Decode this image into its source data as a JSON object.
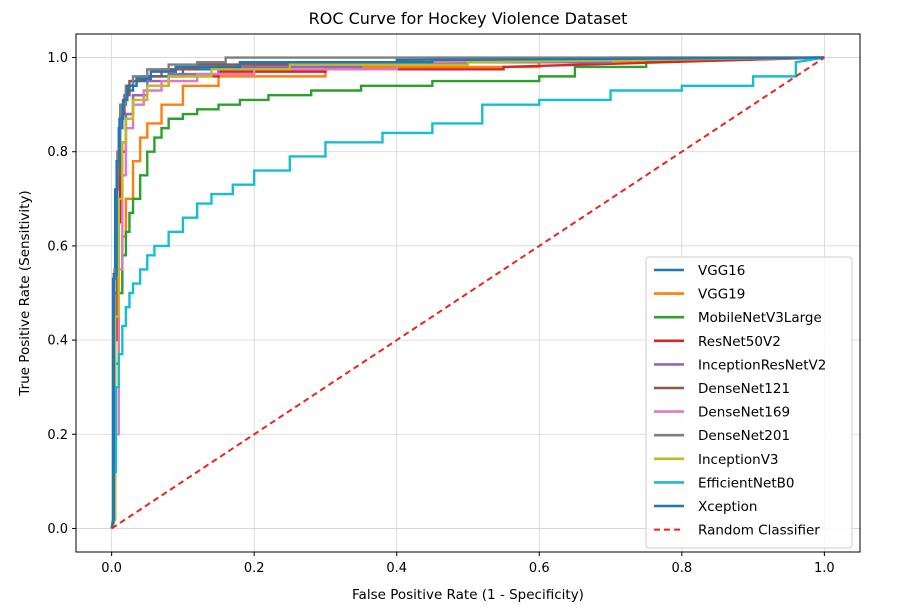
{
  "chart_data": {
    "type": "line",
    "title": "ROC Curve for Hockey Violence Dataset",
    "xlabel": "False Positive Rate (1 - Specificity)",
    "ylabel": "True Positive Rate (Sensitivity)",
    "xlim": [
      -0.05,
      1.05
    ],
    "ylim": [
      -0.05,
      1.05
    ],
    "xticks": [
      "0.0",
      "0.2",
      "0.4",
      "0.6",
      "0.8",
      "1.0"
    ],
    "yticks": [
      "0.0",
      "0.2",
      "0.4",
      "0.6",
      "0.8",
      "1.0"
    ],
    "grid": true,
    "legend_position": "lower-right",
    "series": [
      {
        "name": "VGG16",
        "color": "#1f77b4",
        "dash": false,
        "x": [
          0,
          0.002,
          0.002,
          0.005,
          0.005,
          0.01,
          0.01,
          0.015,
          0.015,
          0.02,
          0.02,
          0.03,
          0.03,
          0.05,
          0.05,
          0.1,
          0.1,
          0.2,
          0.2,
          0.4,
          0.4,
          1.0
        ],
        "y": [
          0,
          0.02,
          0.53,
          0.53,
          0.72,
          0.72,
          0.85,
          0.85,
          0.9,
          0.9,
          0.93,
          0.93,
          0.95,
          0.95,
          0.96,
          0.96,
          0.975,
          0.975,
          0.985,
          0.985,
          0.995,
          1.0
        ]
      },
      {
        "name": "VGG19",
        "color": "#ff7f0e",
        "dash": false,
        "x": [
          0,
          0.005,
          0.005,
          0.01,
          0.01,
          0.015,
          0.015,
          0.02,
          0.02,
          0.03,
          0.03,
          0.04,
          0.04,
          0.05,
          0.05,
          0.07,
          0.07,
          0.1,
          0.1,
          0.15,
          0.15,
          0.3,
          0.3,
          0.6,
          0.6,
          1.0
        ],
        "y": [
          0,
          0.02,
          0.3,
          0.3,
          0.5,
          0.5,
          0.62,
          0.62,
          0.7,
          0.7,
          0.78,
          0.78,
          0.83,
          0.83,
          0.86,
          0.86,
          0.9,
          0.9,
          0.94,
          0.94,
          0.96,
          0.96,
          0.98,
          0.98,
          0.99,
          1.0
        ]
      },
      {
        "name": "MobileNetV3Large",
        "color": "#2ca02c",
        "dash": false,
        "x": [
          0,
          0.005,
          0.005,
          0.01,
          0.01,
          0.015,
          0.015,
          0.02,
          0.02,
          0.025,
          0.025,
          0.03,
          0.03,
          0.04,
          0.04,
          0.05,
          0.05,
          0.06,
          0.06,
          0.07,
          0.07,
          0.08,
          0.08,
          0.1,
          0.1,
          0.12,
          0.12,
          0.15,
          0.15,
          0.18,
          0.18,
          0.22,
          0.22,
          0.28,
          0.28,
          0.35,
          0.35,
          0.45,
          0.45,
          0.6,
          0.6,
          0.65,
          0.65,
          0.75,
          0.75,
          1.0
        ],
        "y": [
          0,
          0.02,
          0.35,
          0.35,
          0.5,
          0.5,
          0.58,
          0.58,
          0.63,
          0.63,
          0.67,
          0.67,
          0.7,
          0.7,
          0.75,
          0.75,
          0.8,
          0.8,
          0.83,
          0.83,
          0.85,
          0.85,
          0.87,
          0.87,
          0.88,
          0.88,
          0.89,
          0.89,
          0.9,
          0.9,
          0.91,
          0.91,
          0.92,
          0.92,
          0.93,
          0.93,
          0.94,
          0.94,
          0.95,
          0.95,
          0.96,
          0.96,
          0.98,
          0.98,
          0.99,
          1.0
        ]
      },
      {
        "name": "ResNet50V2",
        "color": "#d62728",
        "dash": false,
        "x": [
          0,
          0.004,
          0.004,
          0.008,
          0.008,
          0.012,
          0.012,
          0.02,
          0.02,
          0.03,
          0.03,
          0.05,
          0.05,
          0.08,
          0.08,
          0.15,
          0.15,
          0.3,
          0.3,
          0.55,
          0.55,
          1.0
        ],
        "y": [
          0,
          0.02,
          0.4,
          0.4,
          0.65,
          0.65,
          0.8,
          0.8,
          0.88,
          0.88,
          0.92,
          0.92,
          0.94,
          0.94,
          0.96,
          0.96,
          0.97,
          0.97,
          0.975,
          0.975,
          0.98,
          1.0
        ]
      },
      {
        "name": "InceptionResNetV2",
        "color": "#9467bd",
        "dash": false,
        "x": [
          0,
          0.005,
          0.005,
          0.01,
          0.01,
          0.015,
          0.015,
          0.02,
          0.02,
          0.03,
          0.03,
          0.05,
          0.05,
          0.08,
          0.08,
          0.15,
          0.15,
          0.35,
          0.35,
          0.7,
          0.7,
          1.0
        ],
        "y": [
          0,
          0.02,
          0.45,
          0.45,
          0.7,
          0.7,
          0.82,
          0.82,
          0.88,
          0.88,
          0.92,
          0.92,
          0.95,
          0.95,
          0.965,
          0.965,
          0.98,
          0.98,
          0.99,
          0.99,
          1.0,
          1.0
        ]
      },
      {
        "name": "DenseNet121",
        "color": "#8c564b",
        "dash": false,
        "x": [
          0,
          0.004,
          0.004,
          0.008,
          0.008,
          0.012,
          0.012,
          0.018,
          0.018,
          0.025,
          0.025,
          0.04,
          0.04,
          0.07,
          0.07,
          0.12,
          0.12,
          0.25,
          0.25,
          0.5,
          0.5,
          1.0
        ],
        "y": [
          0,
          0.02,
          0.5,
          0.5,
          0.75,
          0.75,
          0.88,
          0.88,
          0.92,
          0.92,
          0.95,
          0.95,
          0.96,
          0.96,
          0.975,
          0.975,
          0.985,
          0.985,
          0.99,
          0.99,
          0.995,
          1.0
        ]
      },
      {
        "name": "DenseNet169",
        "color": "#e377c2",
        "dash": false,
        "x": [
          0,
          0.005,
          0.005,
          0.01,
          0.01,
          0.015,
          0.015,
          0.02,
          0.02,
          0.03,
          0.03,
          0.045,
          0.045,
          0.07,
          0.07,
          0.12,
          0.12,
          0.2,
          0.2,
          0.4,
          0.4,
          1.0
        ],
        "y": [
          0,
          0.02,
          0.2,
          0.2,
          0.55,
          0.55,
          0.75,
          0.75,
          0.85,
          0.85,
          0.9,
          0.9,
          0.93,
          0.93,
          0.95,
          0.95,
          0.965,
          0.965,
          0.975,
          0.975,
          0.99,
          1.0
        ]
      },
      {
        "name": "DenseNet201",
        "color": "#7f7f7f",
        "dash": false,
        "x": [
          0,
          0.004,
          0.004,
          0.008,
          0.008,
          0.012,
          0.012,
          0.02,
          0.02,
          0.03,
          0.03,
          0.05,
          0.05,
          0.08,
          0.08,
          0.12,
          0.12,
          0.16,
          0.16,
          0.3,
          0.3,
          1.0
        ],
        "y": [
          0,
          0.02,
          0.55,
          0.55,
          0.8,
          0.8,
          0.9,
          0.9,
          0.94,
          0.94,
          0.96,
          0.96,
          0.975,
          0.975,
          0.985,
          0.985,
          0.99,
          0.99,
          1.0,
          1.0,
          1.0,
          1.0
        ]
      },
      {
        "name": "InceptionV3",
        "color": "#bcbd22",
        "dash": false,
        "x": [
          0,
          0.005,
          0.005,
          0.01,
          0.01,
          0.015,
          0.015,
          0.02,
          0.02,
          0.03,
          0.03,
          0.05,
          0.05,
          0.08,
          0.08,
          0.14,
          0.14,
          0.25,
          0.25,
          0.5,
          0.5,
          1.0
        ],
        "y": [
          0,
          0.02,
          0.45,
          0.45,
          0.7,
          0.7,
          0.82,
          0.82,
          0.87,
          0.87,
          0.91,
          0.91,
          0.94,
          0.94,
          0.96,
          0.96,
          0.975,
          0.975,
          0.985,
          0.985,
          0.99,
          1.0
        ]
      },
      {
        "name": "EfficientNetB0",
        "color": "#17becf",
        "dash": false,
        "x": [
          0,
          0.003,
          0.003,
          0.006,
          0.006,
          0.01,
          0.01,
          0.015,
          0.015,
          0.02,
          0.02,
          0.025,
          0.025,
          0.03,
          0.03,
          0.04,
          0.04,
          0.05,
          0.05,
          0.06,
          0.06,
          0.08,
          0.08,
          0.1,
          0.1,
          0.12,
          0.12,
          0.14,
          0.14,
          0.17,
          0.17,
          0.2,
          0.2,
          0.25,
          0.25,
          0.3,
          0.3,
          0.38,
          0.38,
          0.45,
          0.45,
          0.52,
          0.52,
          0.6,
          0.6,
          0.7,
          0.7,
          0.8,
          0.8,
          0.9,
          0.9,
          0.96,
          0.96,
          1.0
        ],
        "y": [
          0,
          0.02,
          0.12,
          0.12,
          0.3,
          0.3,
          0.37,
          0.37,
          0.43,
          0.43,
          0.47,
          0.47,
          0.5,
          0.5,
          0.52,
          0.52,
          0.55,
          0.55,
          0.58,
          0.58,
          0.6,
          0.6,
          0.63,
          0.63,
          0.66,
          0.66,
          0.69,
          0.69,
          0.71,
          0.71,
          0.73,
          0.73,
          0.76,
          0.76,
          0.79,
          0.79,
          0.82,
          0.82,
          0.84,
          0.84,
          0.86,
          0.86,
          0.9,
          0.9,
          0.91,
          0.91,
          0.93,
          0.93,
          0.94,
          0.94,
          0.96,
          0.96,
          0.99,
          1.0
        ]
      },
      {
        "name": "Xception",
        "color": "#1f77b4",
        "dash": false,
        "x": [
          0,
          0.003,
          0.003,
          0.007,
          0.007,
          0.011,
          0.011,
          0.016,
          0.016,
          0.022,
          0.022,
          0.035,
          0.035,
          0.055,
          0.055,
          0.09,
          0.09,
          0.18,
          0.18,
          0.45,
          0.45,
          1.0
        ],
        "y": [
          0,
          0.02,
          0.54,
          0.54,
          0.78,
          0.78,
          0.87,
          0.87,
          0.91,
          0.91,
          0.94,
          0.94,
          0.955,
          0.955,
          0.97,
          0.97,
          0.98,
          0.98,
          0.99,
          0.99,
          0.995,
          1.0
        ]
      },
      {
        "name": "Random Classifier",
        "color": "#e8251f",
        "dash": true,
        "x": [
          0,
          1
        ],
        "y": [
          0,
          1
        ]
      }
    ]
  }
}
